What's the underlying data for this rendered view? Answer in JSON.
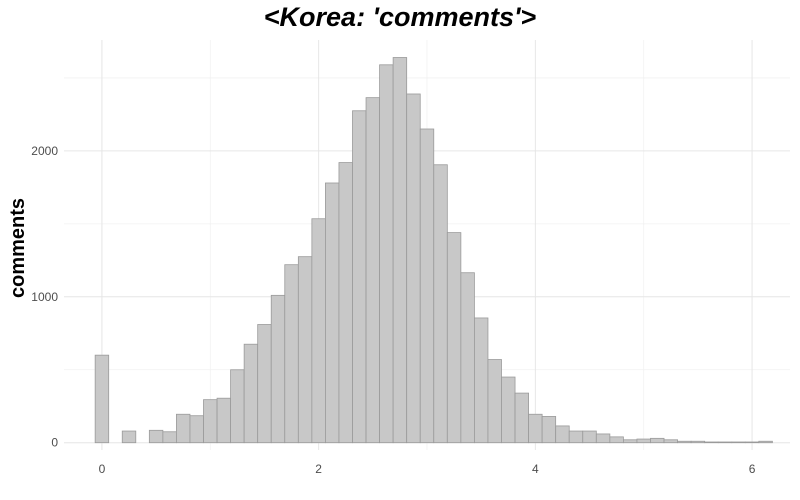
{
  "chart_data": {
    "type": "bar",
    "title": "<Korea: 'comments'>",
    "xlabel": "",
    "ylabel": "comments",
    "grid": true,
    "xlim": [
      -0.35,
      6.35
    ],
    "ylim": [
      -50,
      2760
    ],
    "x_ticks": [
      0,
      2,
      4,
      6
    ],
    "y_ticks": [
      0,
      1000,
      2000
    ],
    "bin_width": 0.125,
    "x": [
      0,
      0.125,
      0.25,
      0.375,
      0.5,
      0.625,
      0.75,
      0.875,
      1.0,
      1.125,
      1.25,
      1.375,
      1.5,
      1.625,
      1.75,
      1.875,
      2.0,
      2.125,
      2.25,
      2.375,
      2.5,
      2.625,
      2.75,
      2.875,
      3.0,
      3.125,
      3.25,
      3.375,
      3.5,
      3.625,
      3.75,
      3.875,
      4.0,
      4.125,
      4.25,
      4.375,
      4.5,
      4.625,
      4.75,
      4.875,
      5.0,
      5.125,
      5.25,
      5.375,
      5.5,
      5.625,
      5.75,
      5.875,
      6.0,
      6.125
    ],
    "values": [
      600,
      0,
      80,
      0,
      85,
      75,
      195,
      185,
      295,
      305,
      500,
      675,
      810,
      1010,
      1220,
      1275,
      1535,
      1780,
      1920,
      2275,
      2365,
      2590,
      2640,
      2390,
      2150,
      1905,
      1440,
      1165,
      855,
      570,
      450,
      340,
      195,
      180,
      115,
      80,
      80,
      60,
      40,
      20,
      25,
      30,
      20,
      10,
      10,
      5,
      5,
      5,
      5,
      10
    ]
  }
}
